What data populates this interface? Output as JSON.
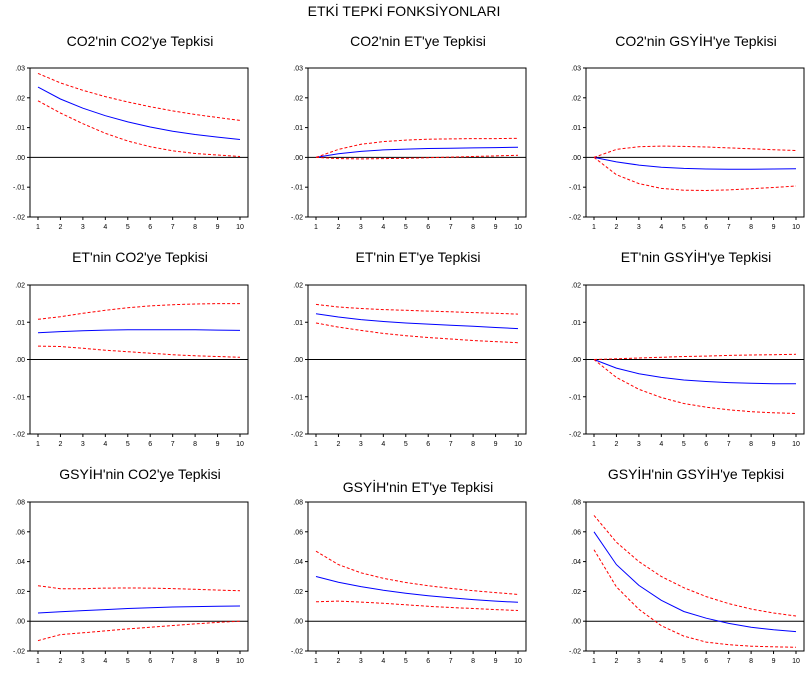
{
  "title": "ETKİ TEPKİ FONKSİYONLARI",
  "colors": {
    "response": "#0000ff",
    "band": "#ff0000",
    "frame": "#000000"
  },
  "chart_data": [
    {
      "type": "line",
      "title": "CO2'nin CO2'ye Tepkisi",
      "x": [
        1,
        2,
        3,
        4,
        5,
        6,
        7,
        8,
        9,
        10
      ],
      "ylim": [
        -0.02,
        0.03
      ],
      "yticks": [
        ".03",
        ".02",
        ".01",
        ".00",
        "-.01",
        "-.02"
      ],
      "ytick_values": [
        0.03,
        0.02,
        0.01,
        0.0,
        -0.01,
        -0.02
      ],
      "series": [
        {
          "role": "response",
          "values": [
            0.0236,
            0.0196,
            0.0165,
            0.014,
            0.0119,
            0.0102,
            0.0088,
            0.0077,
            0.0068,
            0.006
          ]
        },
        {
          "role": "upper",
          "values": [
            0.0282,
            0.025,
            0.0225,
            0.0204,
            0.0186,
            0.017,
            0.0156,
            0.0144,
            0.0134,
            0.0124
          ]
        },
        {
          "role": "lower",
          "values": [
            0.019,
            0.0149,
            0.0113,
            0.0081,
            0.0055,
            0.0036,
            0.0022,
            0.0013,
            0.0008,
            0.0003
          ]
        }
      ]
    },
    {
      "type": "line",
      "title": "CO2'nin ET'ye Tepkisi",
      "x": [
        1,
        2,
        3,
        4,
        5,
        6,
        7,
        8,
        9,
        10
      ],
      "ylim": [
        -0.02,
        0.03
      ],
      "yticks": [
        ".03",
        ".02",
        ".01",
        ".00",
        "-.01",
        "-.02"
      ],
      "ytick_values": [
        0.03,
        0.02,
        0.01,
        0.0,
        -0.01,
        -0.02
      ],
      "series": [
        {
          "role": "response",
          "values": [
            0.0,
            0.0012,
            0.002,
            0.0025,
            0.0028,
            0.003,
            0.0031,
            0.0032,
            0.0033,
            0.0034
          ]
        },
        {
          "role": "upper",
          "values": [
            0.0,
            0.0027,
            0.0044,
            0.0053,
            0.0058,
            0.0061,
            0.0062,
            0.0063,
            0.0063,
            0.0064
          ]
        },
        {
          "role": "lower",
          "values": [
            0.0,
            -0.0004,
            -0.0005,
            -0.0004,
            -0.0003,
            -0.0001,
            0.0001,
            0.0003,
            0.0005,
            0.0007
          ]
        }
      ]
    },
    {
      "type": "line",
      "title": "CO2'nin GSYİH'ye Tepkisi",
      "x": [
        1,
        2,
        3,
        4,
        5,
        6,
        7,
        8,
        9,
        10
      ],
      "ylim": [
        -0.02,
        0.03
      ],
      "yticks": [
        ".03",
        ".02",
        ".01",
        ".00",
        "-.01",
        "-.02"
      ],
      "ytick_values": [
        0.03,
        0.02,
        0.01,
        0.0,
        -0.01,
        -0.02
      ],
      "series": [
        {
          "role": "response",
          "values": [
            0.0,
            -0.0015,
            -0.0026,
            -0.0033,
            -0.0037,
            -0.0039,
            -0.004,
            -0.004,
            -0.0039,
            -0.0038
          ]
        },
        {
          "role": "upper",
          "values": [
            0.0,
            0.0027,
            0.0036,
            0.0038,
            0.0037,
            0.0035,
            0.0032,
            0.0029,
            0.0026,
            0.0023
          ]
        },
        {
          "role": "lower",
          "values": [
            0.0,
            -0.0058,
            -0.0088,
            -0.0104,
            -0.011,
            -0.0111,
            -0.0109,
            -0.0105,
            -0.0101,
            -0.0096
          ]
        }
      ]
    },
    {
      "type": "line",
      "title": "ET'nin CO2'ye Tepkisi",
      "x": [
        1,
        2,
        3,
        4,
        5,
        6,
        7,
        8,
        9,
        10
      ],
      "ylim": [
        -0.02,
        0.02
      ],
      "yticks": [
        ".02",
        ".01",
        ".00",
        "-.01",
        "-.02"
      ],
      "ytick_values": [
        0.02,
        0.01,
        0.0,
        -0.01,
        -0.02
      ],
      "series": [
        {
          "role": "response",
          "values": [
            0.0072,
            0.0075,
            0.0077,
            0.0079,
            0.008,
            0.008,
            0.008,
            0.008,
            0.0079,
            0.0078
          ]
        },
        {
          "role": "upper",
          "values": [
            0.0108,
            0.0115,
            0.0124,
            0.0132,
            0.0139,
            0.0144,
            0.0147,
            0.0149,
            0.015,
            0.015
          ]
        },
        {
          "role": "lower",
          "values": [
            0.0036,
            0.0035,
            0.003,
            0.0025,
            0.0021,
            0.0017,
            0.0013,
            0.001,
            0.0008,
            0.0006
          ]
        }
      ]
    },
    {
      "type": "line",
      "title": "ET'nin ET'ye Tepkisi",
      "x": [
        1,
        2,
        3,
        4,
        5,
        6,
        7,
        8,
        9,
        10
      ],
      "ylim": [
        -0.02,
        0.02
      ],
      "yticks": [
        ".02",
        ".01",
        ".00",
        "-.01",
        "-.02"
      ],
      "ytick_values": [
        0.02,
        0.01,
        0.0,
        -0.01,
        -0.02
      ],
      "series": [
        {
          "role": "response",
          "values": [
            0.0123,
            0.0114,
            0.0107,
            0.0102,
            0.0098,
            0.0095,
            0.0092,
            0.0089,
            0.0086,
            0.0083
          ]
        },
        {
          "role": "upper",
          "values": [
            0.0148,
            0.0141,
            0.0137,
            0.0134,
            0.0132,
            0.013,
            0.0128,
            0.0126,
            0.0124,
            0.0122
          ]
        },
        {
          "role": "lower",
          "values": [
            0.0098,
            0.0087,
            0.0078,
            0.007,
            0.0064,
            0.0059,
            0.0055,
            0.0051,
            0.0048,
            0.0045
          ]
        }
      ]
    },
    {
      "type": "line",
      "title": "ET'nin GSYİH'ye Tepkisi",
      "x": [
        1,
        2,
        3,
        4,
        5,
        6,
        7,
        8,
        9,
        10
      ],
      "ylim": [
        -0.02,
        0.02
      ],
      "yticks": [
        ".02",
        ".01",
        ".00",
        "-.01",
        "-.02"
      ],
      "ytick_values": [
        0.02,
        0.01,
        0.0,
        -0.01,
        -0.02
      ],
      "series": [
        {
          "role": "response",
          "values": [
            0.0,
            -0.0023,
            -0.0038,
            -0.0048,
            -0.0055,
            -0.0059,
            -0.0062,
            -0.0064,
            -0.0065,
            -0.0065
          ]
        },
        {
          "role": "upper",
          "values": [
            0.0,
            0.0002,
            0.0004,
            0.0006,
            0.0008,
            0.0009,
            0.0011,
            0.0012,
            0.0013,
            0.0014
          ]
        },
        {
          "role": "lower",
          "values": [
            0.0,
            -0.0048,
            -0.008,
            -0.0102,
            -0.0118,
            -0.0128,
            -0.0135,
            -0.014,
            -0.0143,
            -0.0145
          ]
        }
      ]
    },
    {
      "type": "line",
      "title": "GSYİH'nin CO2'ye Tepkisi",
      "x": [
        1,
        2,
        3,
        4,
        5,
        6,
        7,
        8,
        9,
        10
      ],
      "ylim": [
        -0.02,
        0.08
      ],
      "yticks": [
        ".08",
        ".06",
        ".04",
        ".02",
        ".00",
        "-.02"
      ],
      "ytick_values": [
        0.08,
        0.06,
        0.04,
        0.02,
        0.0,
        -0.02
      ],
      "series": [
        {
          "role": "response",
          "values": [
            0.0055,
            0.0063,
            0.0071,
            0.0078,
            0.0085,
            0.009,
            0.0095,
            0.0098,
            0.01,
            0.0102
          ]
        },
        {
          "role": "upper",
          "values": [
            0.0238,
            0.0218,
            0.0218,
            0.0222,
            0.0223,
            0.0222,
            0.0219,
            0.0214,
            0.0209,
            0.0205
          ]
        },
        {
          "role": "lower",
          "values": [
            -0.013,
            -0.009,
            -0.0078,
            -0.0065,
            -0.0052,
            -0.004,
            -0.0029,
            -0.0018,
            -0.0008,
            0.0
          ]
        }
      ]
    },
    {
      "type": "line",
      "title": "GSYİH'nin ET'ye Tepkisi",
      "x": [
        1,
        2,
        3,
        4,
        5,
        6,
        7,
        8,
        9,
        10
      ],
      "ylim": [
        -0.02,
        0.08
      ],
      "yticks": [
        ".08",
        ".06",
        ".04",
        ".02",
        ".00",
        "-.02"
      ],
      "ytick_values": [
        0.08,
        0.06,
        0.04,
        0.02,
        0.0,
        -0.02
      ],
      "series": [
        {
          "role": "response",
          "values": [
            0.03,
            0.0262,
            0.0232,
            0.0208,
            0.0188,
            0.0171,
            0.0157,
            0.0145,
            0.0135,
            0.0127
          ]
        },
        {
          "role": "upper",
          "values": [
            0.047,
            0.038,
            0.0325,
            0.0288,
            0.026,
            0.0238,
            0.022,
            0.0205,
            0.0192,
            0.018
          ]
        },
        {
          "role": "lower",
          "values": [
            0.013,
            0.0135,
            0.0128,
            0.012,
            0.011,
            0.01,
            0.0092,
            0.0085,
            0.0078,
            0.0072
          ]
        }
      ]
    },
    {
      "type": "line",
      "title": "GSYİH'nin GSYİH'ye Tepkisi",
      "x": [
        1,
        2,
        3,
        4,
        5,
        6,
        7,
        8,
        9,
        10
      ],
      "ylim": [
        -0.02,
        0.08
      ],
      "yticks": [
        ".08",
        ".06",
        ".04",
        ".02",
        ".00",
        "-.02"
      ],
      "ytick_values": [
        0.08,
        0.06,
        0.04,
        0.02,
        0.0,
        -0.02
      ],
      "series": [
        {
          "role": "response",
          "values": [
            0.06,
            0.038,
            0.024,
            0.014,
            0.0065,
            0.002,
            -0.0015,
            -0.004,
            -0.0058,
            -0.007
          ]
        },
        {
          "role": "upper",
          "values": [
            0.071,
            0.053,
            0.04,
            0.03,
            0.0225,
            0.0165,
            0.0118,
            0.0082,
            0.0055,
            0.0035
          ]
        },
        {
          "role": "lower",
          "values": [
            0.048,
            0.023,
            0.008,
            -0.003,
            -0.01,
            -0.014,
            -0.0158,
            -0.0168,
            -0.0172,
            -0.0175
          ]
        }
      ]
    }
  ]
}
